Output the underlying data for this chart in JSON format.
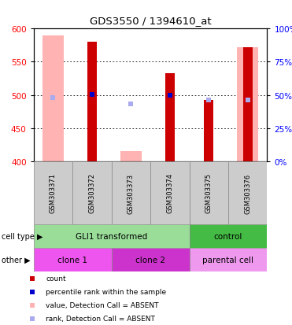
{
  "title": "GDS3550 / 1394610_at",
  "samples": [
    "GSM303371",
    "GSM303372",
    "GSM303373",
    "GSM303374",
    "GSM303375",
    "GSM303376"
  ],
  "ylim": [
    400,
    600
  ],
  "yticks_left": [
    400,
    450,
    500,
    550,
    600
  ],
  "yticks_right": [
    0,
    25,
    50,
    75,
    100
  ],
  "count_values": [
    null,
    580,
    null,
    533,
    492,
    572
  ],
  "count_color": "#cc0000",
  "absent_value_values": [
    590,
    null,
    415,
    null,
    null,
    572
  ],
  "absent_value_color": "#ffb3b3",
  "percentile_rank_values": [
    null,
    501,
    null,
    500,
    null,
    null
  ],
  "percentile_rank_color": "#0000cc",
  "percentile_rank_absent_values": [
    496,
    null,
    487,
    null,
    493,
    493
  ],
  "percentile_rank_absent_color": "#aaaaee",
  "cell_type_groups": [
    {
      "label": "GLI1 transformed",
      "start": 0,
      "end": 3,
      "color": "#99dd99"
    },
    {
      "label": "control",
      "start": 4,
      "end": 5,
      "color": "#44bb44"
    }
  ],
  "other_groups": [
    {
      "label": "clone 1",
      "start": 0,
      "end": 1,
      "color": "#ee55ee"
    },
    {
      "label": "clone 2",
      "start": 2,
      "end": 3,
      "color": "#cc33cc"
    },
    {
      "label": "parental cell",
      "start": 4,
      "end": 5,
      "color": "#ee99ee"
    }
  ],
  "cell_type_label": "cell type",
  "other_label": "other",
  "legend_items": [
    {
      "label": "count",
      "color": "#cc0000"
    },
    {
      "label": "percentile rank within the sample",
      "color": "#0000cc"
    },
    {
      "label": "value, Detection Call = ABSENT",
      "color": "#ffb3b3"
    },
    {
      "label": "rank, Detection Call = ABSENT",
      "color": "#aaaaee"
    }
  ],
  "figsize": [
    3.71,
    4.14
  ],
  "dpi": 100
}
